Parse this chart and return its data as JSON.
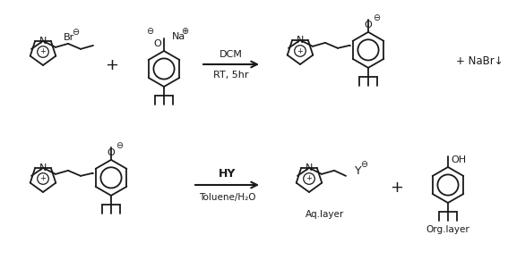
{
  "bg_color": "#ffffff",
  "line_color": "#1a1a1a",
  "figsize": [
    5.67,
    2.91
  ],
  "dpi": 100,
  "r1_arrow_top": "DCM",
  "r1_arrow_bot": "RT, 5hr",
  "r1_product": "+ NaBr↓",
  "r2_arrow_top": "HY",
  "r2_arrow_bot": "Toluene/H₂O",
  "aq_label": "Aq.layer",
  "org_label": "Org.layer"
}
